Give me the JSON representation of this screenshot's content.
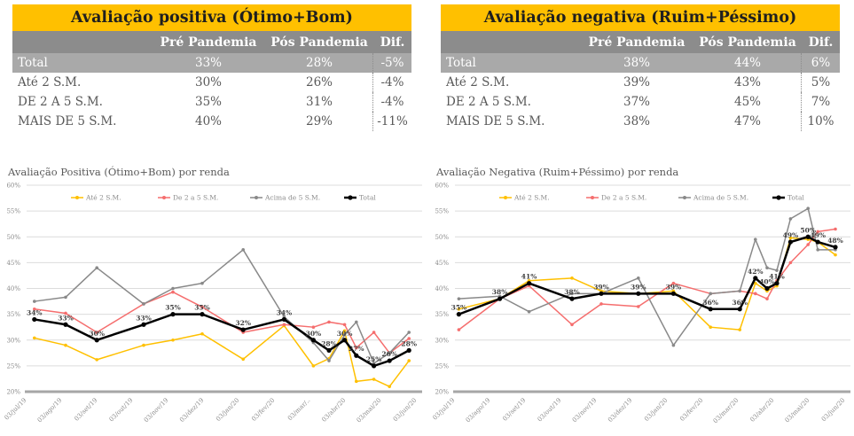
{
  "colors": {
    "accent_yellow": "#FFC000",
    "header_gray": "#8C8C8C",
    "total_row_gray": "#A9A9A9",
    "body_text": "#595959",
    "grid_line": "#DCDCDC",
    "axis_text": "#8C8C8C",
    "series_yellow": "#FFC000",
    "series_red": "#F56E6E",
    "series_gray": "#898989",
    "series_black": "#000000"
  },
  "tables": [
    {
      "title": "Avaliação positiva (Ótimo+Bom)",
      "columns": [
        "",
        "Pré Pandemia",
        "Pós Pandemia",
        "Dif."
      ],
      "rows": [
        {
          "label": "Total",
          "pre": "33%",
          "pos": "28%",
          "dif": "-5%",
          "is_total": true
        },
        {
          "label": "Até 2 S.M.",
          "pre": "30%",
          "pos": "26%",
          "dif": "-4%",
          "is_total": false
        },
        {
          "label": "DE 2 A 5 S.M.",
          "pre": "35%",
          "pos": "31%",
          "dif": "-4%",
          "is_total": false
        },
        {
          "label": "MAIS DE 5 S.M.",
          "pre": "40%",
          "pos": "29%",
          "dif": "-11%",
          "is_total": false
        }
      ]
    },
    {
      "title": "Avaliação negativa (Ruim+Péssimo)",
      "columns": [
        "",
        "Pré Pandemia",
        "Pós Pandemia",
        "Dif."
      ],
      "rows": [
        {
          "label": "Total",
          "pre": "38%",
          "pos": "44%",
          "dif": "6%",
          "is_total": true
        },
        {
          "label": "Até 2 S.M.",
          "pre": "39%",
          "pos": "43%",
          "dif": "5%",
          "is_total": false
        },
        {
          "label": "DE 2 A 5 S.M.",
          "pre": "37%",
          "pos": "45%",
          "dif": "7%",
          "is_total": false
        },
        {
          "label": "MAIS DE 5 S.M.",
          "pre": "38%",
          "pos": "47%",
          "dif": "10%",
          "is_total": false
        }
      ]
    }
  ],
  "chart_data": [
    {
      "type": "line",
      "title": "Avaliação Positiva (Ótimo+Bom) por renda",
      "xlabel": "",
      "ylabel": "",
      "ylim": [
        20,
        60
      ],
      "yticks": [
        20,
        25,
        30,
        35,
        40,
        45,
        50,
        55,
        60
      ],
      "ytick_suffix": "%",
      "grid": true,
      "legend_position": "top",
      "x_tick_labels": [
        "03/jul/19",
        "03/ago/19",
        "03/set/19",
        "03/out/19",
        "03/nov/19",
        "03/dez/19",
        "03/jan/20",
        "03/fev/20",
        "03/mar/..",
        "03/abr/20",
        "03/mai/20",
        "03/jun/20"
      ],
      "series": [
        {
          "name": "Até 2 S.M.",
          "color": "#FFC000",
          "emphasis": false,
          "x": [
            0.02,
            0.1,
            0.18,
            0.3,
            0.375,
            0.45,
            0.555,
            0.66,
            0.735,
            0.775,
            0.815,
            0.845,
            0.89,
            0.93,
            0.98
          ],
          "values": [
            30.4,
            29,
            26.2,
            29,
            30,
            31.2,
            26.3,
            32.8,
            25,
            26.4,
            31.8,
            22,
            22.4,
            21,
            26
          ]
        },
        {
          "name": "De 2 a 5 S.M.",
          "color": "#F56E6E",
          "emphasis": false,
          "x": [
            0.02,
            0.1,
            0.18,
            0.3,
            0.375,
            0.45,
            0.555,
            0.66,
            0.735,
            0.775,
            0.815,
            0.845,
            0.89,
            0.93,
            0.98
          ],
          "values": [
            36,
            35.2,
            31.5,
            37,
            39.3,
            36.4,
            31.5,
            33,
            32.5,
            33.5,
            33,
            28.5,
            31.5,
            27.5,
            30.3
          ]
        },
        {
          "name": "Acima de 5 S.M.",
          "color": "#898989",
          "emphasis": false,
          "x": [
            0.02,
            0.1,
            0.18,
            0.3,
            0.375,
            0.45,
            0.555,
            0.66,
            0.735,
            0.775,
            0.815,
            0.845,
            0.89,
            0.93,
            0.98
          ],
          "values": [
            37.5,
            38.3,
            44,
            37,
            40,
            41,
            47.5,
            34.5,
            29.5,
            26,
            31,
            33.5,
            25.5,
            27.5,
            31.5
          ]
        },
        {
          "name": "Total",
          "color": "#000000",
          "emphasis": true,
          "x": [
            0.02,
            0.1,
            0.18,
            0.3,
            0.375,
            0.45,
            0.555,
            0.66,
            0.735,
            0.775,
            0.815,
            0.845,
            0.89,
            0.93,
            0.98
          ],
          "values": [
            34,
            33,
            30,
            33,
            35,
            35,
            32,
            34,
            30,
            28,
            30,
            27,
            25,
            26,
            28
          ],
          "labels": [
            "34%",
            "33%",
            "30%",
            "33%",
            "35%",
            "35%",
            "32%",
            "34%",
            "30%",
            "28%",
            "30%",
            "27%",
            "25%",
            "26%",
            "28%"
          ]
        }
      ]
    },
    {
      "type": "line",
      "title": "Avaliação Negativa (Ruim+Péssimo) por renda",
      "xlabel": "",
      "ylabel": "",
      "ylim": [
        20,
        60
      ],
      "yticks": [
        20,
        25,
        30,
        35,
        40,
        45,
        50,
        55,
        60
      ],
      "ytick_suffix": "%",
      "grid": true,
      "legend_position": "top",
      "x_tick_labels": [
        "03/jul/19",
        "03/ago/19",
        "03/set/19",
        "03/out/19",
        "03/nov/19",
        "03/dez/19",
        "03/jan/20",
        "03/fev/20",
        "03/mar/20",
        "03/abr/20",
        "03/mai/20",
        "03/jun/20"
      ],
      "series": [
        {
          "name": "Até 2 S.M.",
          "color": "#FFC000",
          "emphasis": false,
          "x": [
            0.01,
            0.115,
            0.19,
            0.3,
            0.375,
            0.47,
            0.56,
            0.655,
            0.73,
            0.77,
            0.8,
            0.825,
            0.86,
            0.905,
            0.93,
            0.975
          ],
          "values": [
            36,
            38,
            41.5,
            42,
            39.5,
            39,
            39.5,
            32.5,
            32,
            41,
            39.5,
            40.5,
            49.8,
            49.5,
            49,
            46.5
          ]
        },
        {
          "name": "De 2 a 5 S.M.",
          "color": "#F56E6E",
          "emphasis": false,
          "x": [
            0.01,
            0.115,
            0.19,
            0.3,
            0.375,
            0.47,
            0.56,
            0.655,
            0.73,
            0.77,
            0.8,
            0.825,
            0.86,
            0.905,
            0.93,
            0.975
          ],
          "values": [
            32,
            38,
            40.5,
            33,
            37,
            36.5,
            41,
            39,
            39.5,
            39,
            38,
            41.5,
            45,
            48.5,
            51,
            51.5
          ]
        },
        {
          "name": "Acima de 5 S.M.",
          "color": "#898989",
          "emphasis": false,
          "x": [
            0.01,
            0.115,
            0.19,
            0.3,
            0.375,
            0.47,
            0.56,
            0.655,
            0.73,
            0.77,
            0.8,
            0.825,
            0.86,
            0.905,
            0.93,
            0.975
          ],
          "values": [
            38,
            38.5,
            35.5,
            39,
            39,
            42,
            29,
            39,
            39.5,
            49.5,
            44,
            43.5,
            53.5,
            55.5,
            47.5,
            47.5
          ]
        },
        {
          "name": "Total",
          "color": "#000000",
          "emphasis": true,
          "x": [
            0.01,
            0.115,
            0.19,
            0.3,
            0.375,
            0.47,
            0.56,
            0.655,
            0.73,
            0.77,
            0.8,
            0.825,
            0.86,
            0.905,
            0.93,
            0.975
          ],
          "values": [
            35,
            38,
            41,
            38,
            39,
            39,
            39,
            36,
            36,
            42,
            40,
            41,
            49,
            50,
            49,
            48
          ],
          "labels": [
            "35%",
            "38%",
            "41%",
            "38%",
            "39%",
            "39%",
            "39%",
            "36%",
            "36%",
            "42%",
            "40%",
            "41%",
            "49%",
            "50%",
            "49%",
            "48%"
          ]
        }
      ]
    }
  ]
}
